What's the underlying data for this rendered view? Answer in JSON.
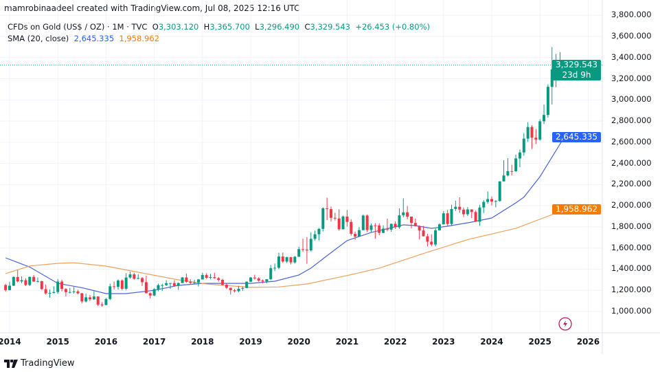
{
  "credit": "mamrobinaadeel created with TradingView.com, Jul 08, 2025 12:16 UTC",
  "legend": {
    "symbol": "CFDs on Gold (US$ / OZ) · 1M · TVC",
    "open_label": "O",
    "open": "3,303.120",
    "high_label": "H",
    "high": "3,365.700",
    "low_label": "L",
    "low": "3,296.490",
    "close_label": "C",
    "close": "3,329.543",
    "change": "+26.453 (+0.80%)",
    "sma_label": "SMA (20, close)",
    "sma_value_1": "2,645.335",
    "sma_value_2": "1,958.962"
  },
  "price_labels": {
    "last_price": "3,329.543",
    "countdown": "23d 9h",
    "sma_blue": "2,645.335",
    "sma_orange": "1,958.962"
  },
  "footer": {
    "brand": "TradingView"
  },
  "colors": {
    "up": "#089981",
    "down": "#f23645",
    "sma_blue": "#4a62d8",
    "sma_orange": "#f0a05a",
    "last_price": "#089981",
    "sma_blue_label": "#2962ff",
    "sma_orange_label": "#f57c00"
  },
  "chart_data": {
    "type": "candlestick",
    "interval": "1M",
    "y_scale": "linear",
    "ylim": [
      850,
      3850
    ],
    "grid": true,
    "y_ticks": [
      "1,000.000",
      "1,200.000",
      "1,400.000",
      "1,600.000",
      "1,800.000",
      "2,000.000",
      "2,200.000",
      "2,400.000",
      "2,600.000",
      "2,800.000",
      "3,000.000",
      "3,200.000",
      "3,400.000",
      "3,600.000",
      "3,800.000"
    ],
    "x_ticks": [
      "2014",
      "2015",
      "2016",
      "2017",
      "2018",
      "2019",
      "2020",
      "2021",
      "2022",
      "2023",
      "2024",
      "2025",
      "2026"
    ],
    "candles": [
      [
        "2013-12",
        1250,
        1262,
        1187,
        1202
      ],
      [
        "2014-01",
        1202,
        1280,
        1200,
        1244
      ],
      [
        "2014-02",
        1244,
        1332,
        1240,
        1326
      ],
      [
        "2014-03",
        1326,
        1392,
        1277,
        1284
      ],
      [
        "2014-04",
        1284,
        1332,
        1268,
        1296
      ],
      [
        "2014-05",
        1296,
        1315,
        1240,
        1250
      ],
      [
        "2014-06",
        1250,
        1330,
        1240,
        1327
      ],
      [
        "2014-07",
        1327,
        1345,
        1282,
        1282
      ],
      [
        "2014-08",
        1282,
        1322,
        1275,
        1287
      ],
      [
        "2014-09",
        1287,
        1290,
        1205,
        1211
      ],
      [
        "2014-10",
        1211,
        1255,
        1160,
        1171
      ],
      [
        "2014-11",
        1171,
        1208,
        1130,
        1175
      ],
      [
        "2014-12",
        1175,
        1238,
        1170,
        1184
      ],
      [
        "2015-01",
        1184,
        1307,
        1168,
        1283
      ],
      [
        "2015-02",
        1283,
        1300,
        1190,
        1213
      ],
      [
        "2015-03",
        1213,
        1220,
        1142,
        1183
      ],
      [
        "2015-04",
        1183,
        1224,
        1170,
        1184
      ],
      [
        "2015-05",
        1184,
        1232,
        1170,
        1190
      ],
      [
        "2015-06",
        1190,
        1205,
        1162,
        1172
      ],
      [
        "2015-07",
        1172,
        1175,
        1077,
        1095
      ],
      [
        "2015-08",
        1095,
        1170,
        1084,
        1134
      ],
      [
        "2015-09",
        1134,
        1157,
        1098,
        1115
      ],
      [
        "2015-10",
        1115,
        1191,
        1108,
        1142
      ],
      [
        "2015-11",
        1142,
        1143,
        1052,
        1065
      ],
      [
        "2015-12",
        1065,
        1088,
        1046,
        1061
      ],
      [
        "2016-01",
        1061,
        1128,
        1060,
        1118
      ],
      [
        "2016-02",
        1118,
        1263,
        1108,
        1238
      ],
      [
        "2016-03",
        1238,
        1282,
        1208,
        1233
      ],
      [
        "2016-04",
        1233,
        1304,
        1207,
        1293
      ],
      [
        "2016-05",
        1293,
        1304,
        1200,
        1215
      ],
      [
        "2016-06",
        1215,
        1362,
        1200,
        1321
      ],
      [
        "2016-07",
        1321,
        1375,
        1310,
        1351
      ],
      [
        "2016-08",
        1351,
        1366,
        1302,
        1309
      ],
      [
        "2016-09",
        1309,
        1352,
        1303,
        1316
      ],
      [
        "2016-10",
        1316,
        1325,
        1241,
        1277
      ],
      [
        "2016-11",
        1277,
        1338,
        1171,
        1173
      ],
      [
        "2016-12",
        1173,
        1180,
        1123,
        1151
      ],
      [
        "2017-01",
        1151,
        1220,
        1146,
        1211
      ],
      [
        "2017-02",
        1211,
        1264,
        1191,
        1249
      ],
      [
        "2017-03",
        1249,
        1262,
        1195,
        1249
      ],
      [
        "2017-04",
        1249,
        1296,
        1241,
        1268
      ],
      [
        "2017-05",
        1268,
        1270,
        1214,
        1269
      ],
      [
        "2017-06",
        1269,
        1296,
        1236,
        1242
      ],
      [
        "2017-07",
        1242,
        1275,
        1204,
        1269
      ],
      [
        "2017-08",
        1269,
        1326,
        1268,
        1322
      ],
      [
        "2017-09",
        1322,
        1358,
        1271,
        1280
      ],
      [
        "2017-10",
        1280,
        1306,
        1261,
        1271
      ],
      [
        "2017-11",
        1271,
        1299,
        1263,
        1275
      ],
      [
        "2017-12",
        1275,
        1307,
        1236,
        1303
      ],
      [
        "2018-01",
        1303,
        1366,
        1302,
        1345
      ],
      [
        "2018-02",
        1345,
        1362,
        1307,
        1318
      ],
      [
        "2018-03",
        1318,
        1356,
        1303,
        1325
      ],
      [
        "2018-04",
        1325,
        1366,
        1310,
        1315
      ],
      [
        "2018-05",
        1315,
        1326,
        1282,
        1299
      ],
      [
        "2018-06",
        1299,
        1309,
        1246,
        1253
      ],
      [
        "2018-07",
        1253,
        1265,
        1211,
        1224
      ],
      [
        "2018-08",
        1224,
        1225,
        1160,
        1201
      ],
      [
        "2018-09",
        1201,
        1214,
        1180,
        1192
      ],
      [
        "2018-10",
        1192,
        1243,
        1183,
        1215
      ],
      [
        "2018-11",
        1215,
        1237,
        1196,
        1222
      ],
      [
        "2018-12",
        1222,
        1284,
        1221,
        1282
      ],
      [
        "2019-01",
        1282,
        1326,
        1276,
        1321
      ],
      [
        "2019-02",
        1321,
        1347,
        1302,
        1313
      ],
      [
        "2019-03",
        1313,
        1324,
        1281,
        1292
      ],
      [
        "2019-04",
        1292,
        1303,
        1266,
        1284
      ],
      [
        "2019-05",
        1284,
        1306,
        1267,
        1305
      ],
      [
        "2019-06",
        1305,
        1439,
        1296,
        1409
      ],
      [
        "2019-07",
        1409,
        1453,
        1382,
        1413
      ],
      [
        "2019-08",
        1413,
        1555,
        1400,
        1520
      ],
      [
        "2019-09",
        1520,
        1557,
        1459,
        1472
      ],
      [
        "2019-10",
        1472,
        1518,
        1458,
        1513
      ],
      [
        "2019-11",
        1513,
        1516,
        1445,
        1464
      ],
      [
        "2019-12",
        1464,
        1525,
        1453,
        1517
      ],
      [
        "2020-01",
        1517,
        1611,
        1517,
        1589
      ],
      [
        "2020-02",
        1589,
        1689,
        1563,
        1585
      ],
      [
        "2020-03",
        1585,
        1703,
        1451,
        1577
      ],
      [
        "2020-04",
        1577,
        1747,
        1567,
        1687
      ],
      [
        "2020-05",
        1687,
        1765,
        1670,
        1730
      ],
      [
        "2020-06",
        1730,
        1789,
        1671,
        1781
      ],
      [
        "2020-07",
        1781,
        1984,
        1757,
        1975
      ],
      [
        "2020-08",
        1975,
        2075,
        1863,
        1968
      ],
      [
        "2020-09",
        1968,
        1992,
        1849,
        1886
      ],
      [
        "2020-10",
        1886,
        1933,
        1860,
        1879
      ],
      [
        "2020-11",
        1879,
        1966,
        1764,
        1777
      ],
      [
        "2020-12",
        1777,
        1906,
        1775,
        1898
      ],
      [
        "2021-01",
        1898,
        1959,
        1802,
        1847
      ],
      [
        "2021-02",
        1847,
        1873,
        1717,
        1734
      ],
      [
        "2021-03",
        1734,
        1755,
        1677,
        1708
      ],
      [
        "2021-04",
        1708,
        1798,
        1706,
        1769
      ],
      [
        "2021-05",
        1769,
        1916,
        1766,
        1907
      ],
      [
        "2021-06",
        1907,
        1917,
        1750,
        1770
      ],
      [
        "2021-07",
        1770,
        1832,
        1750,
        1814
      ],
      [
        "2021-08",
        1814,
        1834,
        1688,
        1813
      ],
      [
        "2021-09",
        1813,
        1834,
        1721,
        1743
      ],
      [
        "2021-10",
        1743,
        1814,
        1746,
        1783
      ],
      [
        "2021-11",
        1783,
        1877,
        1758,
        1774
      ],
      [
        "2021-12",
        1774,
        1831,
        1753,
        1829
      ],
      [
        "2022-01",
        1829,
        1853,
        1780,
        1796
      ],
      [
        "2022-02",
        1796,
        1974,
        1781,
        1909
      ],
      [
        "2022-03",
        1909,
        2070,
        1890,
        1937
      ],
      [
        "2022-04",
        1937,
        1998,
        1872,
        1897
      ],
      [
        "2022-05",
        1897,
        1870,
        1786,
        1837
      ],
      [
        "2022-06",
        1837,
        1879,
        1805,
        1807
      ],
      [
        "2022-07",
        1807,
        1814,
        1681,
        1766
      ],
      [
        "2022-08",
        1766,
        1808,
        1709,
        1711
      ],
      [
        "2022-09",
        1711,
        1735,
        1615,
        1660
      ],
      [
        "2022-10",
        1660,
        1730,
        1617,
        1633
      ],
      [
        "2022-11",
        1633,
        1786,
        1616,
        1768
      ],
      [
        "2022-12",
        1768,
        1833,
        1765,
        1824
      ],
      [
        "2023-01",
        1824,
        1949,
        1823,
        1928
      ],
      [
        "2023-02",
        1928,
        1960,
        1804,
        1827
      ],
      [
        "2023-03",
        1827,
        2009,
        1810,
        1969
      ],
      [
        "2023-04",
        1969,
        2048,
        1950,
        1990
      ],
      [
        "2023-05",
        1990,
        2079,
        1932,
        1963
      ],
      [
        "2023-06",
        1963,
        1983,
        1893,
        1919
      ],
      [
        "2023-07",
        1919,
        1987,
        1903,
        1965
      ],
      [
        "2023-08",
        1965,
        1950,
        1884,
        1940
      ],
      [
        "2023-09",
        1940,
        1953,
        1846,
        1849
      ],
      [
        "2023-10",
        1849,
        2009,
        1810,
        1983
      ],
      [
        "2023-11",
        1983,
        2052,
        1931,
        2036
      ],
      [
        "2023-12",
        2036,
        2135,
        2017,
        2063
      ],
      [
        "2024-01",
        2063,
        2088,
        2002,
        2039
      ],
      [
        "2024-02",
        2039,
        2052,
        1984,
        2044
      ],
      [
        "2024-03",
        2044,
        2222,
        2039,
        2230
      ],
      [
        "2024-04",
        2230,
        2431,
        2228,
        2286
      ],
      [
        "2024-05",
        2286,
        2450,
        2277,
        2327
      ],
      [
        "2024-06",
        2327,
        2387,
        2286,
        2326
      ],
      [
        "2024-07",
        2326,
        2483,
        2318,
        2447
      ],
      [
        "2024-08",
        2447,
        2531,
        2364,
        2503
      ],
      [
        "2024-09",
        2503,
        2685,
        2472,
        2634
      ],
      [
        "2024-10",
        2634,
        2790,
        2603,
        2744
      ],
      [
        "2024-11",
        2744,
        2761,
        2536,
        2643
      ],
      [
        "2024-12",
        2643,
        2726,
        2583,
        2625
      ],
      [
        "2025-01",
        2625,
        2817,
        2614,
        2798
      ],
      [
        "2025-02",
        2798,
        2956,
        2772,
        2858
      ],
      [
        "2025-03",
        2858,
        3148,
        2833,
        3124
      ],
      [
        "2025-04",
        3124,
        3500,
        2957,
        3288
      ],
      [
        "2025-05",
        3288,
        3435,
        3121,
        3289
      ],
      [
        "2025-06",
        3289,
        3452,
        3247,
        3303
      ],
      [
        "2025-07",
        3303.12,
        3365.7,
        3296.49,
        3329.543
      ]
    ],
    "series": [
      {
        "label_value": "2,645.335",
        "color": "#4a62d8",
        "points": [
          [
            "2013-12",
            1507
          ],
          [
            "2014-06",
            1420
          ],
          [
            "2015-01",
            1266
          ],
          [
            "2015-07",
            1225
          ],
          [
            "2016-01",
            1169
          ],
          [
            "2016-06",
            1169
          ],
          [
            "2017-01",
            1200
          ],
          [
            "2017-07",
            1247
          ],
          [
            "2018-01",
            1266
          ],
          [
            "2019-01",
            1266
          ],
          [
            "2019-07",
            1286
          ],
          [
            "2020-01",
            1345
          ],
          [
            "2020-04",
            1410
          ],
          [
            "2020-08",
            1527
          ],
          [
            "2021-01",
            1670
          ],
          [
            "2021-07",
            1747
          ],
          [
            "2022-03",
            1819
          ],
          [
            "2022-06",
            1812
          ],
          [
            "2022-10",
            1786
          ],
          [
            "2023-02",
            1806
          ],
          [
            "2023-08",
            1845
          ],
          [
            "2024-01",
            1884
          ],
          [
            "2024-07",
            2027
          ],
          [
            "2024-09",
            2080
          ],
          [
            "2025-01",
            2274
          ],
          [
            "2025-07",
            2645.335
          ]
        ]
      },
      {
        "label_value": "1,958.962",
        "color": "#f0a05a",
        "points": [
          [
            "2013-12",
            1358
          ],
          [
            "2014-06",
            1430
          ],
          [
            "2015-01",
            1455
          ],
          [
            "2015-05",
            1461
          ],
          [
            "2016-01",
            1429
          ],
          [
            "2016-10",
            1364
          ],
          [
            "2017-07",
            1299
          ],
          [
            "2018-02",
            1260
          ],
          [
            "2019-01",
            1228
          ],
          [
            "2019-08",
            1232
          ],
          [
            "2020-03",
            1260
          ],
          [
            "2021-01",
            1340
          ],
          [
            "2021-09",
            1410
          ],
          [
            "2022-09",
            1560
          ],
          [
            "2023-07",
            1680
          ],
          [
            "2024-07",
            1786
          ],
          [
            "2025-07",
            1958.962
          ]
        ]
      }
    ]
  }
}
